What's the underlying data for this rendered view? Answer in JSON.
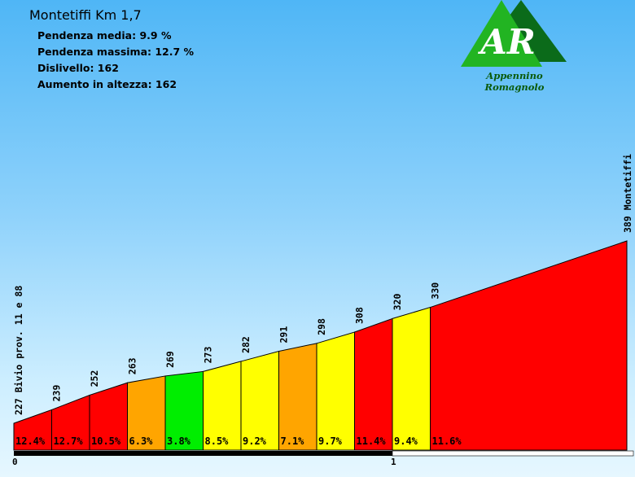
{
  "header": {
    "title": "Montetiffi Km 1,7",
    "stats": [
      "Pendenza media: 9.9 %",
      "Pendenza massima: 12.7 %",
      "Dislivello: 162",
      "Aumento in altezza: 162"
    ]
  },
  "logo": {
    "letters": "AR",
    "caption": "Appennino Romagnolo",
    "colors": {
      "light": "#22b422",
      "dark": "#0b6b1a"
    }
  },
  "chart_data": {
    "type": "area",
    "title": "Montetiffi Km 1,7",
    "ylim": [
      200,
      420
    ],
    "segments": [
      {
        "start_alt": 227,
        "end_alt": 239,
        "grade": "12.4%",
        "color": "#ff0000"
      },
      {
        "start_alt": 239,
        "end_alt": 252,
        "grade": "12.7%",
        "color": "#ff0000"
      },
      {
        "start_alt": 252,
        "end_alt": 263,
        "grade": "10.5%",
        "color": "#ff0000"
      },
      {
        "start_alt": 263,
        "end_alt": 269,
        "grade": "6.3%",
        "color": "#ffa500"
      },
      {
        "start_alt": 269,
        "end_alt": 273,
        "grade": "3.8%",
        "color": "#00ee00"
      },
      {
        "start_alt": 273,
        "end_alt": 282,
        "grade": "8.5%",
        "color": "#ffff00"
      },
      {
        "start_alt": 282,
        "end_alt": 291,
        "grade": "9.2%",
        "color": "#ffff00"
      },
      {
        "start_alt": 291,
        "end_alt": 298,
        "grade": "7.1%",
        "color": "#ffa500"
      },
      {
        "start_alt": 298,
        "end_alt": 308,
        "grade": "9.7%",
        "color": "#ffff00"
      },
      {
        "start_alt": 308,
        "end_alt": 320,
        "grade": "11.4%",
        "color": "#ff0000"
      },
      {
        "start_alt": 320,
        "end_alt": 330,
        "grade": "9.4%",
        "color": "#ffff00"
      },
      {
        "start_alt": 330,
        "end_alt": 389,
        "grade": "11.6%",
        "color": "#ff0000"
      }
    ],
    "point_labels": [
      "227 Bivio prov. 11 e 88",
      "239",
      "252",
      "263",
      "269",
      "273",
      "282",
      "291",
      "298",
      "308",
      "320",
      "330",
      "389 Montetiffi"
    ],
    "km_ticks": [
      "0",
      "1"
    ],
    "km_tick_positions_km": [
      0,
      1
    ]
  }
}
